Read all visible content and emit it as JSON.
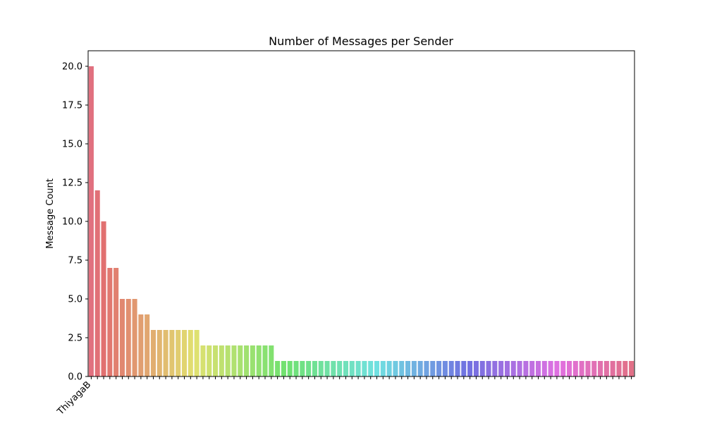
{
  "chart_data": {
    "type": "bar",
    "title": "Number of Messages per Sender",
    "y_label": "Message Count",
    "palette": "husl",
    "categories": [
      "ThiyagaB",
      null,
      null,
      null,
      null,
      null,
      null,
      null,
      null,
      null,
      null,
      null,
      null,
      null,
      null,
      null,
      null,
      null,
      null,
      null,
      null,
      null,
      null,
      null,
      null,
      null,
      null,
      null,
      null,
      null,
      null,
      null,
      null,
      null,
      null,
      null,
      null,
      null,
      null,
      null,
      null,
      null,
      null,
      null,
      null,
      null,
      null,
      null,
      null,
      null,
      null,
      null,
      null,
      null,
      null,
      null,
      null,
      null,
      null,
      null,
      null,
      null,
      null,
      null,
      null,
      null,
      null,
      null,
      null,
      null,
      null,
      null,
      null,
      null,
      null,
      null,
      null,
      null,
      null,
      null,
      null,
      null,
      null,
      null,
      null,
      null,
      null,
      null
    ],
    "values": [
      20,
      12,
      10,
      7,
      7,
      5,
      5,
      5,
      4,
      4,
      3,
      3,
      3,
      3,
      3,
      3,
      3,
      3,
      2,
      2,
      2,
      2,
      2,
      2,
      2,
      2,
      2,
      2,
      2,
      2,
      1,
      1,
      1,
      1,
      1,
      1,
      1,
      1,
      1,
      1,
      1,
      1,
      1,
      1,
      1,
      1,
      1,
      1,
      1,
      1,
      1,
      1,
      1,
      1,
      1,
      1,
      1,
      1,
      1,
      1,
      1,
      1,
      1,
      1,
      1,
      1,
      1,
      1,
      1,
      1,
      1,
      1,
      1,
      1,
      1,
      1,
      1,
      1,
      1,
      1,
      1,
      1,
      1,
      1,
      1,
      1,
      1,
      1
    ],
    "ylim": [
      0,
      21
    ],
    "yticks": [
      {
        "value": 0,
        "label": "0.0"
      },
      {
        "value": 2.5,
        "label": "2.5"
      },
      {
        "value": 5,
        "label": "5.0"
      },
      {
        "value": 7.5,
        "label": "7.5"
      },
      {
        "value": 10,
        "label": "10.0"
      },
      {
        "value": 12.5,
        "label": "12.5"
      },
      {
        "value": 15,
        "label": "15.0"
      },
      {
        "value": 17.5,
        "label": "17.5"
      },
      {
        "value": 20,
        "label": "20.0"
      }
    ],
    "grid": false
  }
}
